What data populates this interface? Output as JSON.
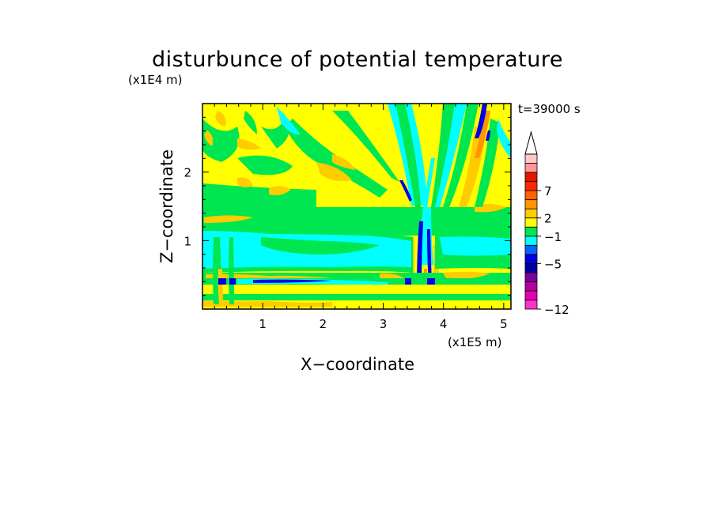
{
  "chart_data": {
    "type": "heatmap",
    "title": "disturbunce of potential temperature",
    "xlabel": "X−coordinate",
    "ylabel": "Z−coordinate",
    "x_unit_label": "(x1E5 m)",
    "y_unit_label": "(x1E4 m)",
    "time_label": "t=39000 s",
    "xlim": [
      0,
      5.12
    ],
    "ylim": [
      0,
      3.0
    ],
    "x_ticks": [
      {
        "value": 1,
        "label": "1"
      },
      {
        "value": 2,
        "label": "2"
      },
      {
        "value": 3,
        "label": "3"
      },
      {
        "value": 4,
        "label": "4"
      },
      {
        "value": 5,
        "label": "5"
      }
    ],
    "y_ticks": [
      {
        "value": 1,
        "label": "1"
      },
      {
        "value": 2,
        "label": "2"
      }
    ],
    "colorbar": {
      "levels": [
        {
          "color": "#ff33cc"
        },
        {
          "color": "#e600b4"
        },
        {
          "color": "#b4009e"
        },
        {
          "color": "#7d00a0"
        },
        {
          "color": "#0000a0"
        },
        {
          "color": "#0000e6"
        },
        {
          "color": "#0064ff"
        },
        {
          "color": "#00ffff"
        },
        {
          "color": "#00e650"
        },
        {
          "color": "#ffff00"
        },
        {
          "color": "#ffcc00"
        },
        {
          "color": "#ff9600"
        },
        {
          "color": "#ff6400"
        },
        {
          "color": "#ff2800"
        },
        {
          "color": "#e61400"
        },
        {
          "color": "#ff9696"
        },
        {
          "color": "#ffc8c8"
        }
      ],
      "extend_top_arrow": true,
      "tick_labels": [
        {
          "label": "−12",
          "level_boundary": 0
        },
        {
          "label": "−5",
          "level_boundary": 5
        },
        {
          "label": "−1",
          "level_boundary": 8
        },
        {
          "label": "2",
          "level_boundary": 10
        },
        {
          "label": "7",
          "level_boundary": 13
        }
      ]
    },
    "field_description_colors": {
      "background": "#ffff00",
      "weak_negative": "#00e650",
      "negative": "#00ffff",
      "strong_negative": "#0000e6",
      "positive": "#ffcc00",
      "strong_positive": "#ff9600"
    }
  }
}
